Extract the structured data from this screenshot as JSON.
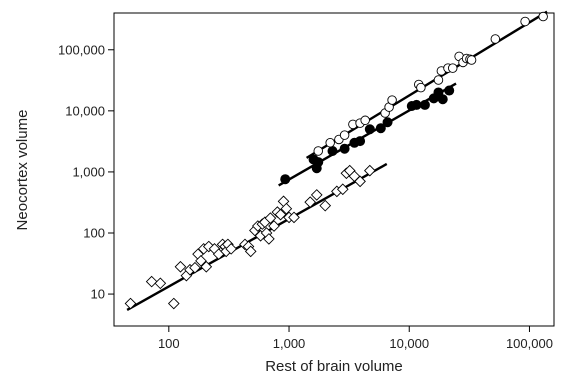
{
  "chart_data": {
    "type": "scatter",
    "xscale": "log",
    "yscale": "log",
    "xlabel": "Rest of brain volume",
    "ylabel": "Neocortex volume",
    "xlim": [
      35,
      160000
    ],
    "ylim": [
      3,
      400000
    ],
    "grid": false,
    "legend": "none",
    "xticks": [
      {
        "value": 100,
        "label": "100"
      },
      {
        "value": 1000,
        "label": "1,000"
      },
      {
        "value": 10000,
        "label": "10,000"
      },
      {
        "value": 100000,
        "label": "100,000"
      }
    ],
    "yticks": [
      {
        "value": 10,
        "label": "10"
      },
      {
        "value": 100,
        "label": "100"
      },
      {
        "value": 1000,
        "label": "1,000"
      },
      {
        "value": 10000,
        "label": "10,000"
      },
      {
        "value": 100000,
        "label": "100,000"
      }
    ],
    "series": [
      {
        "marker": "diamond-open",
        "points": [
          [
            48,
            7
          ],
          [
            72,
            16
          ],
          [
            85,
            15
          ],
          [
            110,
            7
          ],
          [
            125,
            28
          ],
          [
            140,
            20
          ],
          [
            150,
            25
          ],
          [
            165,
            27
          ],
          [
            175,
            45
          ],
          [
            185,
            35
          ],
          [
            195,
            55
          ],
          [
            205,
            28
          ],
          [
            215,
            60
          ],
          [
            240,
            55
          ],
          [
            260,
            45
          ],
          [
            280,
            65
          ],
          [
            295,
            60
          ],
          [
            300,
            50
          ],
          [
            310,
            65
          ],
          [
            330,
            55
          ],
          [
            430,
            65
          ],
          [
            460,
            60
          ],
          [
            480,
            50
          ],
          [
            520,
            110
          ],
          [
            550,
            130
          ],
          [
            580,
            90
          ],
          [
            600,
            140
          ],
          [
            630,
            150
          ],
          [
            650,
            100
          ],
          [
            680,
            80
          ],
          [
            700,
            175
          ],
          [
            750,
            130
          ],
          [
            800,
            220
          ],
          [
            850,
            200
          ],
          [
            900,
            330
          ],
          [
            950,
            250
          ],
          [
            1000,
            180
          ],
          [
            1100,
            180
          ],
          [
            1500,
            320
          ],
          [
            1700,
            420
          ],
          [
            2000,
            280
          ],
          [
            2500,
            480
          ],
          [
            2800,
            520
          ],
          [
            3000,
            950
          ],
          [
            3200,
            1050
          ],
          [
            3500,
            850
          ],
          [
            3900,
            700
          ],
          [
            4700,
            1050
          ]
        ],
        "fit": [
          [
            45,
            5.5
          ],
          [
            6500,
            1350
          ]
        ]
      },
      {
        "marker": "circle-filled",
        "points": [
          [
            930,
            760
          ],
          [
            1600,
            1600
          ],
          [
            1700,
            1150
          ],
          [
            1750,
            1450
          ],
          [
            2300,
            2200
          ],
          [
            2900,
            2400
          ],
          [
            3500,
            3000
          ],
          [
            3900,
            3200
          ],
          [
            4700,
            5000
          ],
          [
            5800,
            5200
          ],
          [
            6600,
            6500
          ],
          [
            10500,
            12000
          ],
          [
            11500,
            12500
          ],
          [
            13500,
            12500
          ],
          [
            16000,
            16000
          ],
          [
            17500,
            20000
          ],
          [
            19000,
            15500
          ],
          [
            21500,
            21500
          ]
        ],
        "fit": [
          [
            820,
            600
          ],
          [
            24500,
            28000
          ]
        ]
      },
      {
        "marker": "circle-open",
        "points": [
          [
            1750,
            2200
          ],
          [
            2200,
            3000
          ],
          [
            2600,
            3400
          ],
          [
            2900,
            4000
          ],
          [
            3400,
            6000
          ],
          [
            3900,
            6300
          ],
          [
            4300,
            7000
          ],
          [
            6300,
            9200
          ],
          [
            6800,
            11500
          ],
          [
            7200,
            15000
          ],
          [
            12000,
            27000
          ],
          [
            12500,
            24000
          ],
          [
            17500,
            32000
          ],
          [
            18500,
            45000
          ],
          [
            21000,
            50000
          ],
          [
            23000,
            50000
          ],
          [
            26000,
            78000
          ],
          [
            28000,
            62000
          ],
          [
            30000,
            72000
          ],
          [
            32000,
            70000
          ],
          [
            33000,
            68000
          ],
          [
            52000,
            150000
          ],
          [
            92000,
            290000
          ],
          [
            130000,
            350000
          ]
        ],
        "fit": [
          [
            1400,
            1700
          ],
          [
            140000,
            420000
          ]
        ]
      }
    ]
  }
}
